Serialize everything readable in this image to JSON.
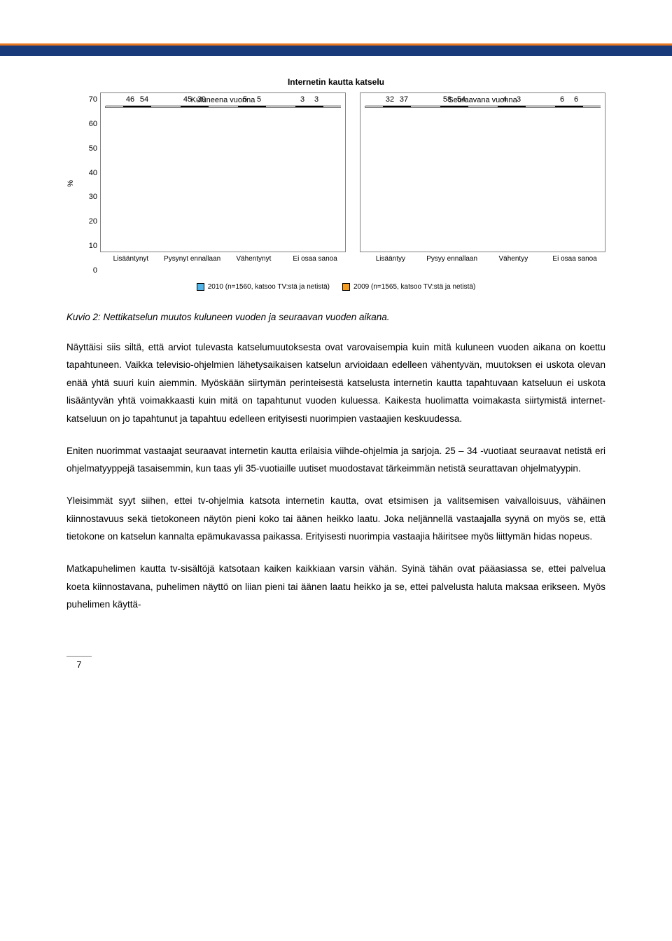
{
  "chart": {
    "title": "Internetin kautta katselu",
    "y_axis_label": "%",
    "y_ticks": [
      70,
      60,
      50,
      40,
      30,
      20,
      10,
      0
    ],
    "ymax": 70,
    "panels": [
      {
        "title": "Kuluneena vuonna",
        "categories": [
          "Lisääntynyt",
          "Pysynyt ennallaan",
          "Vähentynyt",
          "Ei osaa sanoa"
        ],
        "series_a": [
          46,
          45,
          5,
          3
        ],
        "series_b": [
          54,
          39,
          5,
          3
        ]
      },
      {
        "title": "Seuraavana vuonna",
        "categories": [
          "Lisääntyy",
          "Pysyy ennallaan",
          "Vähentyy",
          "Ei osaa sanoa"
        ],
        "series_a": [
          32,
          58,
          4,
          6
        ],
        "series_b": [
          37,
          54,
          3,
          6
        ]
      }
    ],
    "legend": [
      {
        "label": "2010 (n=1560, katsoo TV:stä ja netistä)",
        "color": "#4fb4e8"
      },
      {
        "label": "2009 (n=1565, katsoo TV:stä ja netistä)",
        "color": "#f59b1e"
      }
    ],
    "bar_colors": {
      "a": "#4fb4e8",
      "b": "#f59b1e"
    },
    "grid_color": "#c0c0c0",
    "border_color": "#808080"
  },
  "caption": "Kuvio 2: Nettikatselun muutos kuluneen vuoden ja seuraavan vuoden aikana.",
  "paragraphs": [
    "Näyttäisi siis siltä, että arviot tulevasta katselumuutoksesta ovat varovaisempia kuin mitä kuluneen vuoden aikana on koettu tapahtuneen. Vaikka televisio-ohjelmien lähetysaikaisen katselun arvioidaan edelleen vähentyvän, muutoksen ei uskota olevan enää yhtä suuri kuin aiemmin. Myöskään siirtymän perinteisestä katselusta internetin kautta tapahtuvaan katseluun ei uskota lisääntyvän yhtä voimakkaasti kuin mitä on tapahtunut vuoden kuluessa. Kaikesta huolimatta voimakasta siirtymistä internet-katseluun on jo tapahtunut ja tapahtuu edelleen erityisesti nuorimpien vastaajien keskuudessa.",
    "Eniten nuorimmat vastaajat seuraavat internetin kautta erilaisia viihde-ohjelmia ja sarjoja. 25 – 34 -vuotiaat seuraavat netistä eri ohjelmatyyppejä tasaisemmin, kun taas yli 35-vuotiaille uutiset muodostavat tärkeimmän netistä seurattavan ohjelmatyypin.",
    "Yleisimmät syyt siihen, ettei tv-ohjelmia katsota internetin kautta, ovat etsimisen ja valitsemisen vaivalloisuus, vähäinen kiinnostavuus sekä tietokoneen näytön pieni koko tai äänen heikko laatu. Joka neljännellä vastaajalla syynä on myös se, että tietokone on katselun kannalta epämukavassa paikassa. Erityisesti nuorimpia vastaajia häiritsee myös liittymän hidas nopeus.",
    "Matkapuhelimen kautta tv-sisältöjä katsotaan kaiken kaikkiaan varsin vähän. Syinä tähän ovat pääasiassa se, ettei palvelua koeta kiinnostavana, puhelimen näyttö on liian pieni tai äänen laatu heikko ja se, ettei palvelusta haluta maksaa erikseen. Myös puhelimen käyttä-"
  ],
  "page_number": "7"
}
